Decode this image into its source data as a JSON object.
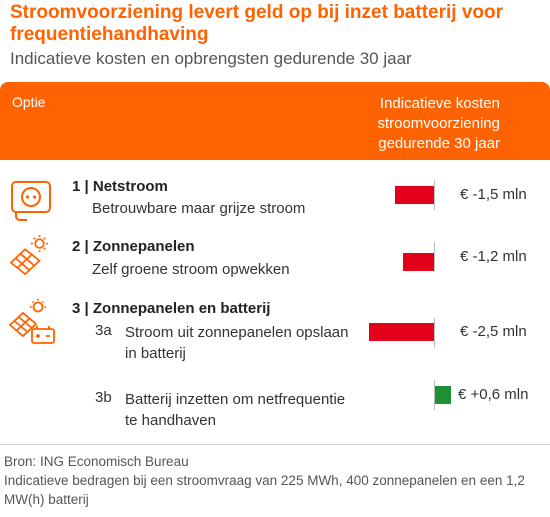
{
  "header": {
    "title": "Stroomvoorziening levert geld op bij inzet batterij voor frequentiehandhaving",
    "subtitle": "Indicatieve kosten en opbrengsten gedurende 30 jaar"
  },
  "table_header": {
    "option_label": "Optie",
    "cost_label": "Indicatieve kosten stroomvoorziening gedurende 30 jaar"
  },
  "rows": [
    {
      "title": "1 | Netstroom",
      "subtitle": "Betrouwbare maar grijze stroom",
      "icon": "power-socket-icon"
    },
    {
      "title": "2 | Zonnepanelen",
      "subtitle": "Zelf groene stroom opwekken",
      "icon": "solar-panel-icon"
    },
    {
      "title": "3 | Zonnepanelen en batterij",
      "icon": "solar-battery-icon",
      "sub_a_num": "3a",
      "sub_a_text": "Stroom uit zonnepanelen opslaan in batterij",
      "sub_b_num": "3b",
      "sub_b_text": "Batterij inzetten om netfrequentie te handhaven"
    }
  ],
  "chart_data": {
    "type": "bar",
    "orientation": "horizontal",
    "unit": "€ mln",
    "categories": [
      "1",
      "2",
      "3a",
      "3b"
    ],
    "values": [
      -1.5,
      -1.2,
      -2.5,
      0.6
    ],
    "value_labels": [
      "€ -1,5 mln",
      "€ -1,2 mln",
      "€ -2,5 mln",
      "€ +0,6 mln"
    ],
    "colors": {
      "negative": "#e3001b",
      "positive": "#1e9134"
    }
  },
  "footer": {
    "source": "Bron: ING Economisch Bureau",
    "note": "Indicatieve bedragen bij een stroomvraag van 225 MWh, 400 zonnepanelen en een 1,2 MW(h) batterij"
  },
  "colors": {
    "accent": "#ff6200"
  }
}
